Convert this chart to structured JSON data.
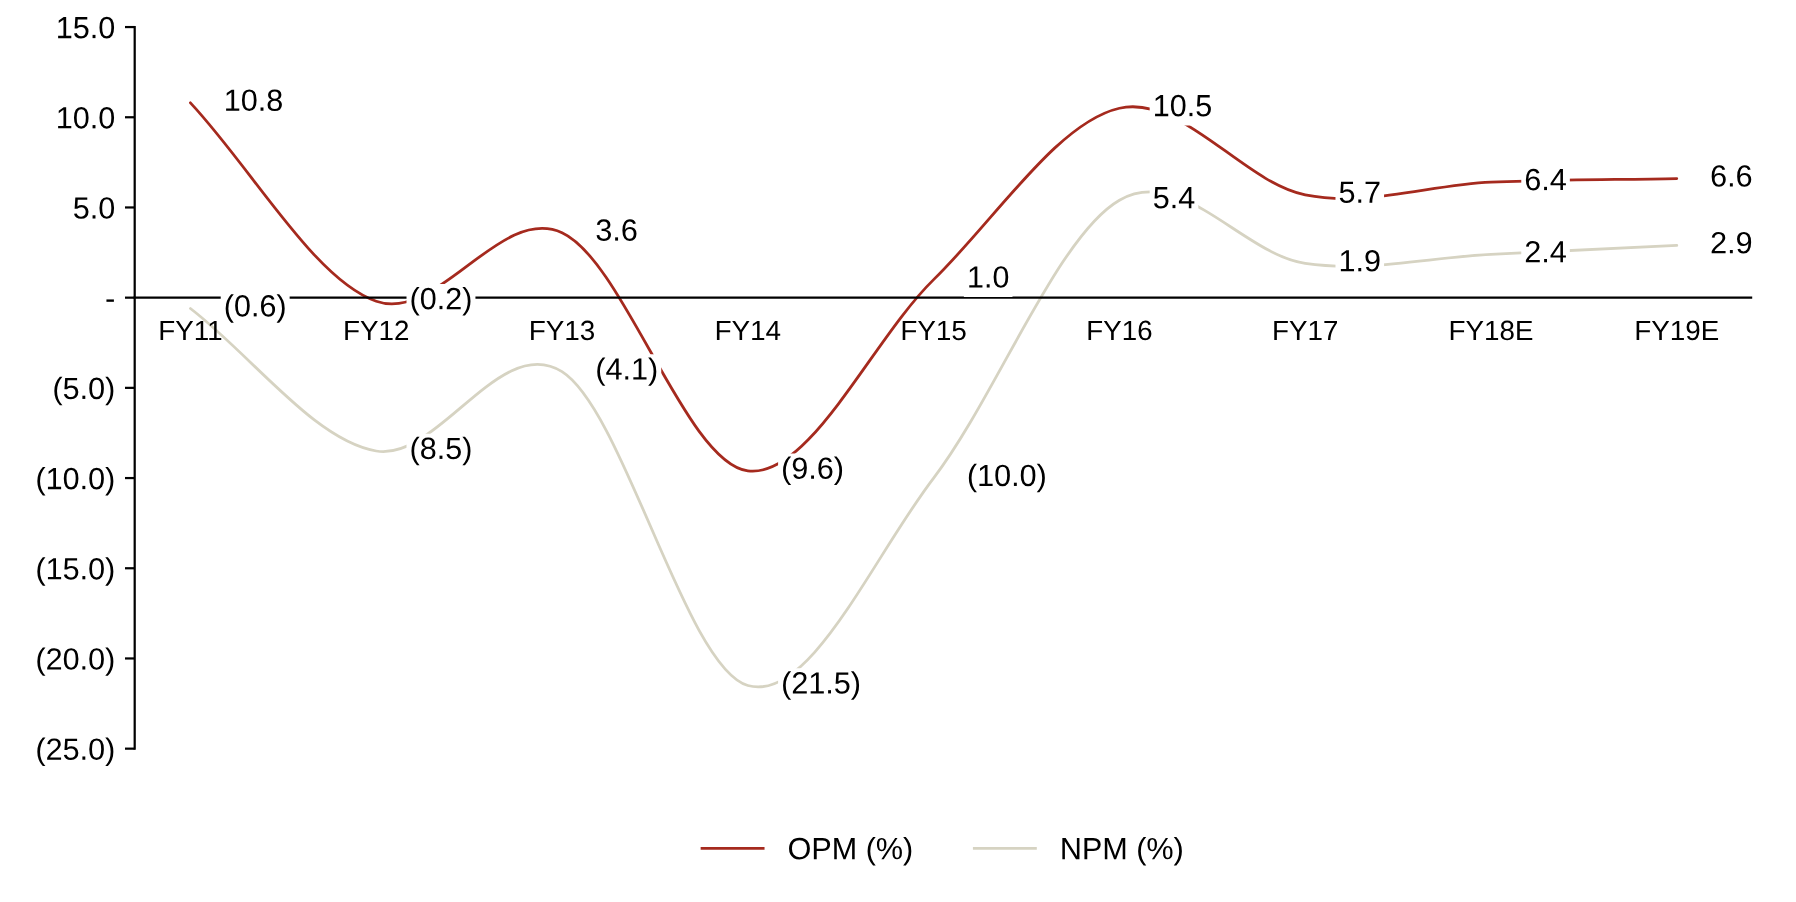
{
  "chart_data": {
    "type": "line",
    "categories": [
      "FY11",
      "FY12",
      "FY13",
      "FY14",
      "FY15",
      "FY16",
      "FY17",
      "FY18E",
      "FY19E"
    ],
    "series": [
      {
        "name": "OPM (%)",
        "color": "#a52a1e",
        "values": [
          10.8,
          -0.2,
          3.6,
          -9.6,
          1.0,
          10.5,
          5.7,
          6.4,
          6.6
        ],
        "value_labels": [
          "10.8",
          "(0.2)",
          "3.6",
          "(9.6)",
          "1.0",
          "10.5",
          "5.7",
          "6.4",
          "6.6"
        ]
      },
      {
        "name": "NPM (%)",
        "color": "#d6d3c2",
        "values": [
          -0.6,
          -8.5,
          -4.1,
          -21.5,
          -10.0,
          5.4,
          1.9,
          2.4,
          2.9
        ],
        "value_labels": [
          "(0.6)",
          "(8.5)",
          "(4.1)",
          "(21.5)",
          "(10.0)",
          "5.4",
          "1.9",
          "2.4",
          "2.9"
        ]
      }
    ],
    "ylim": [
      -25,
      15
    ],
    "yticks": [
      {
        "value": 15,
        "label": "15.0"
      },
      {
        "value": 10,
        "label": "10.0"
      },
      {
        "value": 5,
        "label": "5.0"
      },
      {
        "value": 0,
        "label": "-"
      },
      {
        "value": -5,
        "label": "(5.0)"
      },
      {
        "value": -10,
        "label": "(10.0)"
      },
      {
        "value": -15,
        "label": "(15.0)"
      },
      {
        "value": -20,
        "label": "(20.0)"
      },
      {
        "value": -25,
        "label": "(25.0)"
      }
    ],
    "grid": false,
    "legend": "bottom",
    "marker": "none",
    "line_style": "solid"
  }
}
